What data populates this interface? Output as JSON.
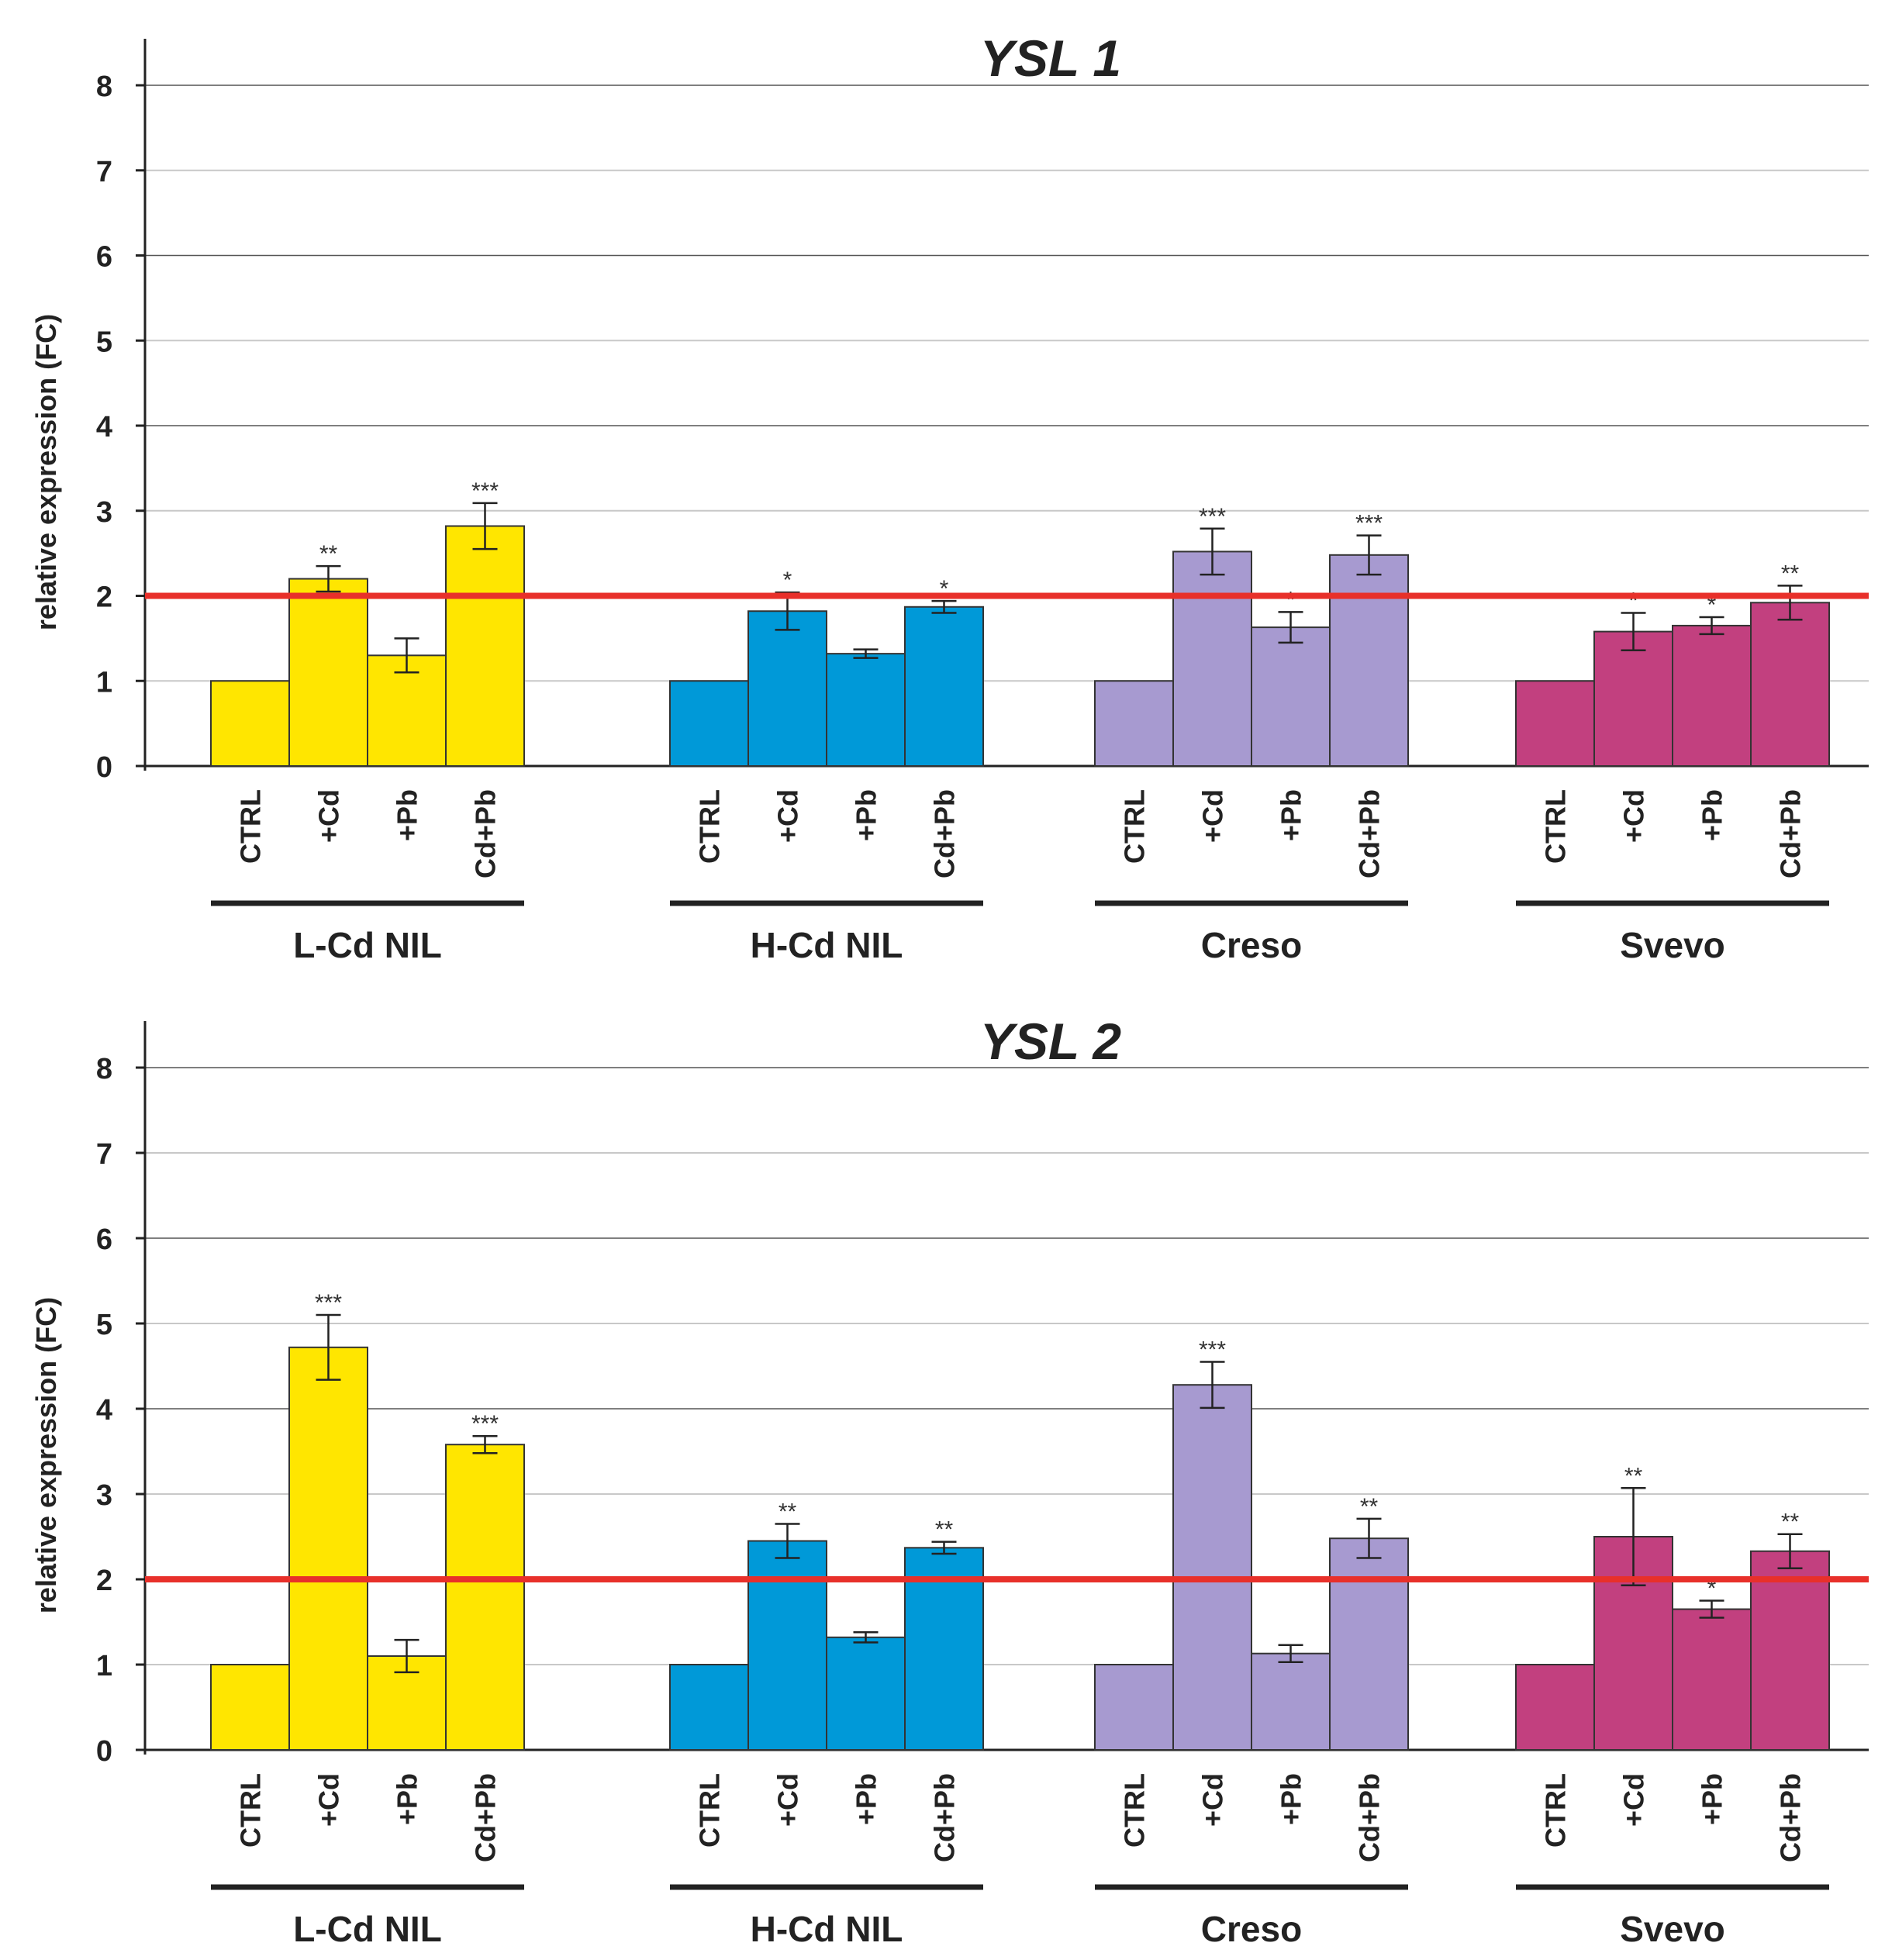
{
  "chart_data": [
    {
      "type": "bar",
      "title": "YSL 1",
      "ylabel": "relative expression (FC)",
      "xlabel": "",
      "ylim": [
        0,
        8
      ],
      "yticks": [
        "0",
        "1",
        "2",
        "3",
        "4",
        "5",
        "6",
        "7",
        "8"
      ],
      "grid": true,
      "threshold": 2,
      "groups": [
        {
          "name": "L-Cd NIL",
          "color": "#ffe600",
          "bars": [
            {
              "label": "CTRL",
              "value": 1.0,
              "error": 0,
              "sig": ""
            },
            {
              "label": "+Cd",
              "value": 2.2,
              "error": 0.15,
              "sig": "**"
            },
            {
              "label": "+Pb",
              "value": 1.3,
              "error": 0.2,
              "sig": ""
            },
            {
              "label": "Cd+Pb",
              "value": 2.82,
              "error": 0.27,
              "sig": "***"
            }
          ]
        },
        {
          "name": "H-Cd NIL",
          "color": "#0099d8",
          "bars": [
            {
              "label": "CTRL",
              "value": 1.0,
              "error": 0,
              "sig": ""
            },
            {
              "label": "+Cd",
              "value": 1.82,
              "error": 0.22,
              "sig": "*"
            },
            {
              "label": "+Pb",
              "value": 1.32,
              "error": 0.05,
              "sig": ""
            },
            {
              "label": "Cd+Pb",
              "value": 1.87,
              "error": 0.07,
              "sig": "*"
            }
          ]
        },
        {
          "name": "Creso",
          "color": "#a79ad0",
          "bars": [
            {
              "label": "CTRL",
              "value": 1.0,
              "error": 0,
              "sig": ""
            },
            {
              "label": "+Cd",
              "value": 2.52,
              "error": 0.27,
              "sig": "***"
            },
            {
              "label": "+Pb",
              "value": 1.63,
              "error": 0.18,
              "sig": "*"
            },
            {
              "label": "Cd+Pb",
              "value": 2.48,
              "error": 0.23,
              "sig": "***"
            }
          ]
        },
        {
          "name": "Svevo",
          "color": "#c2407f",
          "bars": [
            {
              "label": "CTRL",
              "value": 1.0,
              "error": 0,
              "sig": ""
            },
            {
              "label": "+Cd",
              "value": 1.58,
              "error": 0.22,
              "sig": "*"
            },
            {
              "label": "+Pb",
              "value": 1.65,
              "error": 0.1,
              "sig": "*"
            },
            {
              "label": "Cd+Pb",
              "value": 1.92,
              "error": 0.2,
              "sig": "**"
            }
          ]
        }
      ]
    },
    {
      "type": "bar",
      "title": "YSL 2",
      "ylabel": "relative expression (FC)",
      "xlabel": "",
      "ylim": [
        0,
        8
      ],
      "yticks": [
        "0",
        "1",
        "2",
        "3",
        "4",
        "5",
        "6",
        "7",
        "8"
      ],
      "grid": true,
      "threshold": 2,
      "groups": [
        {
          "name": "L-Cd NIL",
          "color": "#ffe600",
          "bars": [
            {
              "label": "CTRL",
              "value": 1.0,
              "error": 0,
              "sig": ""
            },
            {
              "label": "+Cd",
              "value": 4.72,
              "error": 0.38,
              "sig": "***"
            },
            {
              "label": "+Pb",
              "value": 1.1,
              "error": 0.19,
              "sig": ""
            },
            {
              "label": "Cd+Pb",
              "value": 3.58,
              "error": 0.1,
              "sig": "***"
            }
          ]
        },
        {
          "name": "H-Cd NIL",
          "color": "#0099d8",
          "bars": [
            {
              "label": "CTRL",
              "value": 1.0,
              "error": 0,
              "sig": ""
            },
            {
              "label": "+Cd",
              "value": 2.45,
              "error": 0.2,
              "sig": "**"
            },
            {
              "label": "+Pb",
              "value": 1.32,
              "error": 0.06,
              "sig": ""
            },
            {
              "label": "Cd+Pb",
              "value": 2.37,
              "error": 0.07,
              "sig": "**"
            }
          ]
        },
        {
          "name": "Creso",
          "color": "#a79ad0",
          "bars": [
            {
              "label": "CTRL",
              "value": 1.0,
              "error": 0,
              "sig": ""
            },
            {
              "label": "+Cd",
              "value": 4.28,
              "error": 0.27,
              "sig": "***"
            },
            {
              "label": "+Pb",
              "value": 1.13,
              "error": 0.1,
              "sig": ""
            },
            {
              "label": "Cd+Pb",
              "value": 2.48,
              "error": 0.23,
              "sig": "**"
            }
          ]
        },
        {
          "name": "Svevo",
          "color": "#c2407f",
          "bars": [
            {
              "label": "CTRL",
              "value": 1.0,
              "error": 0,
              "sig": ""
            },
            {
              "label": "+Cd",
              "value": 2.5,
              "error": 0.57,
              "sig": "**"
            },
            {
              "label": "+Pb",
              "value": 1.65,
              "error": 0.1,
              "sig": "*"
            },
            {
              "label": "Cd+Pb",
              "value": 2.33,
              "error": 0.2,
              "sig": "**"
            }
          ]
        }
      ]
    }
  ]
}
